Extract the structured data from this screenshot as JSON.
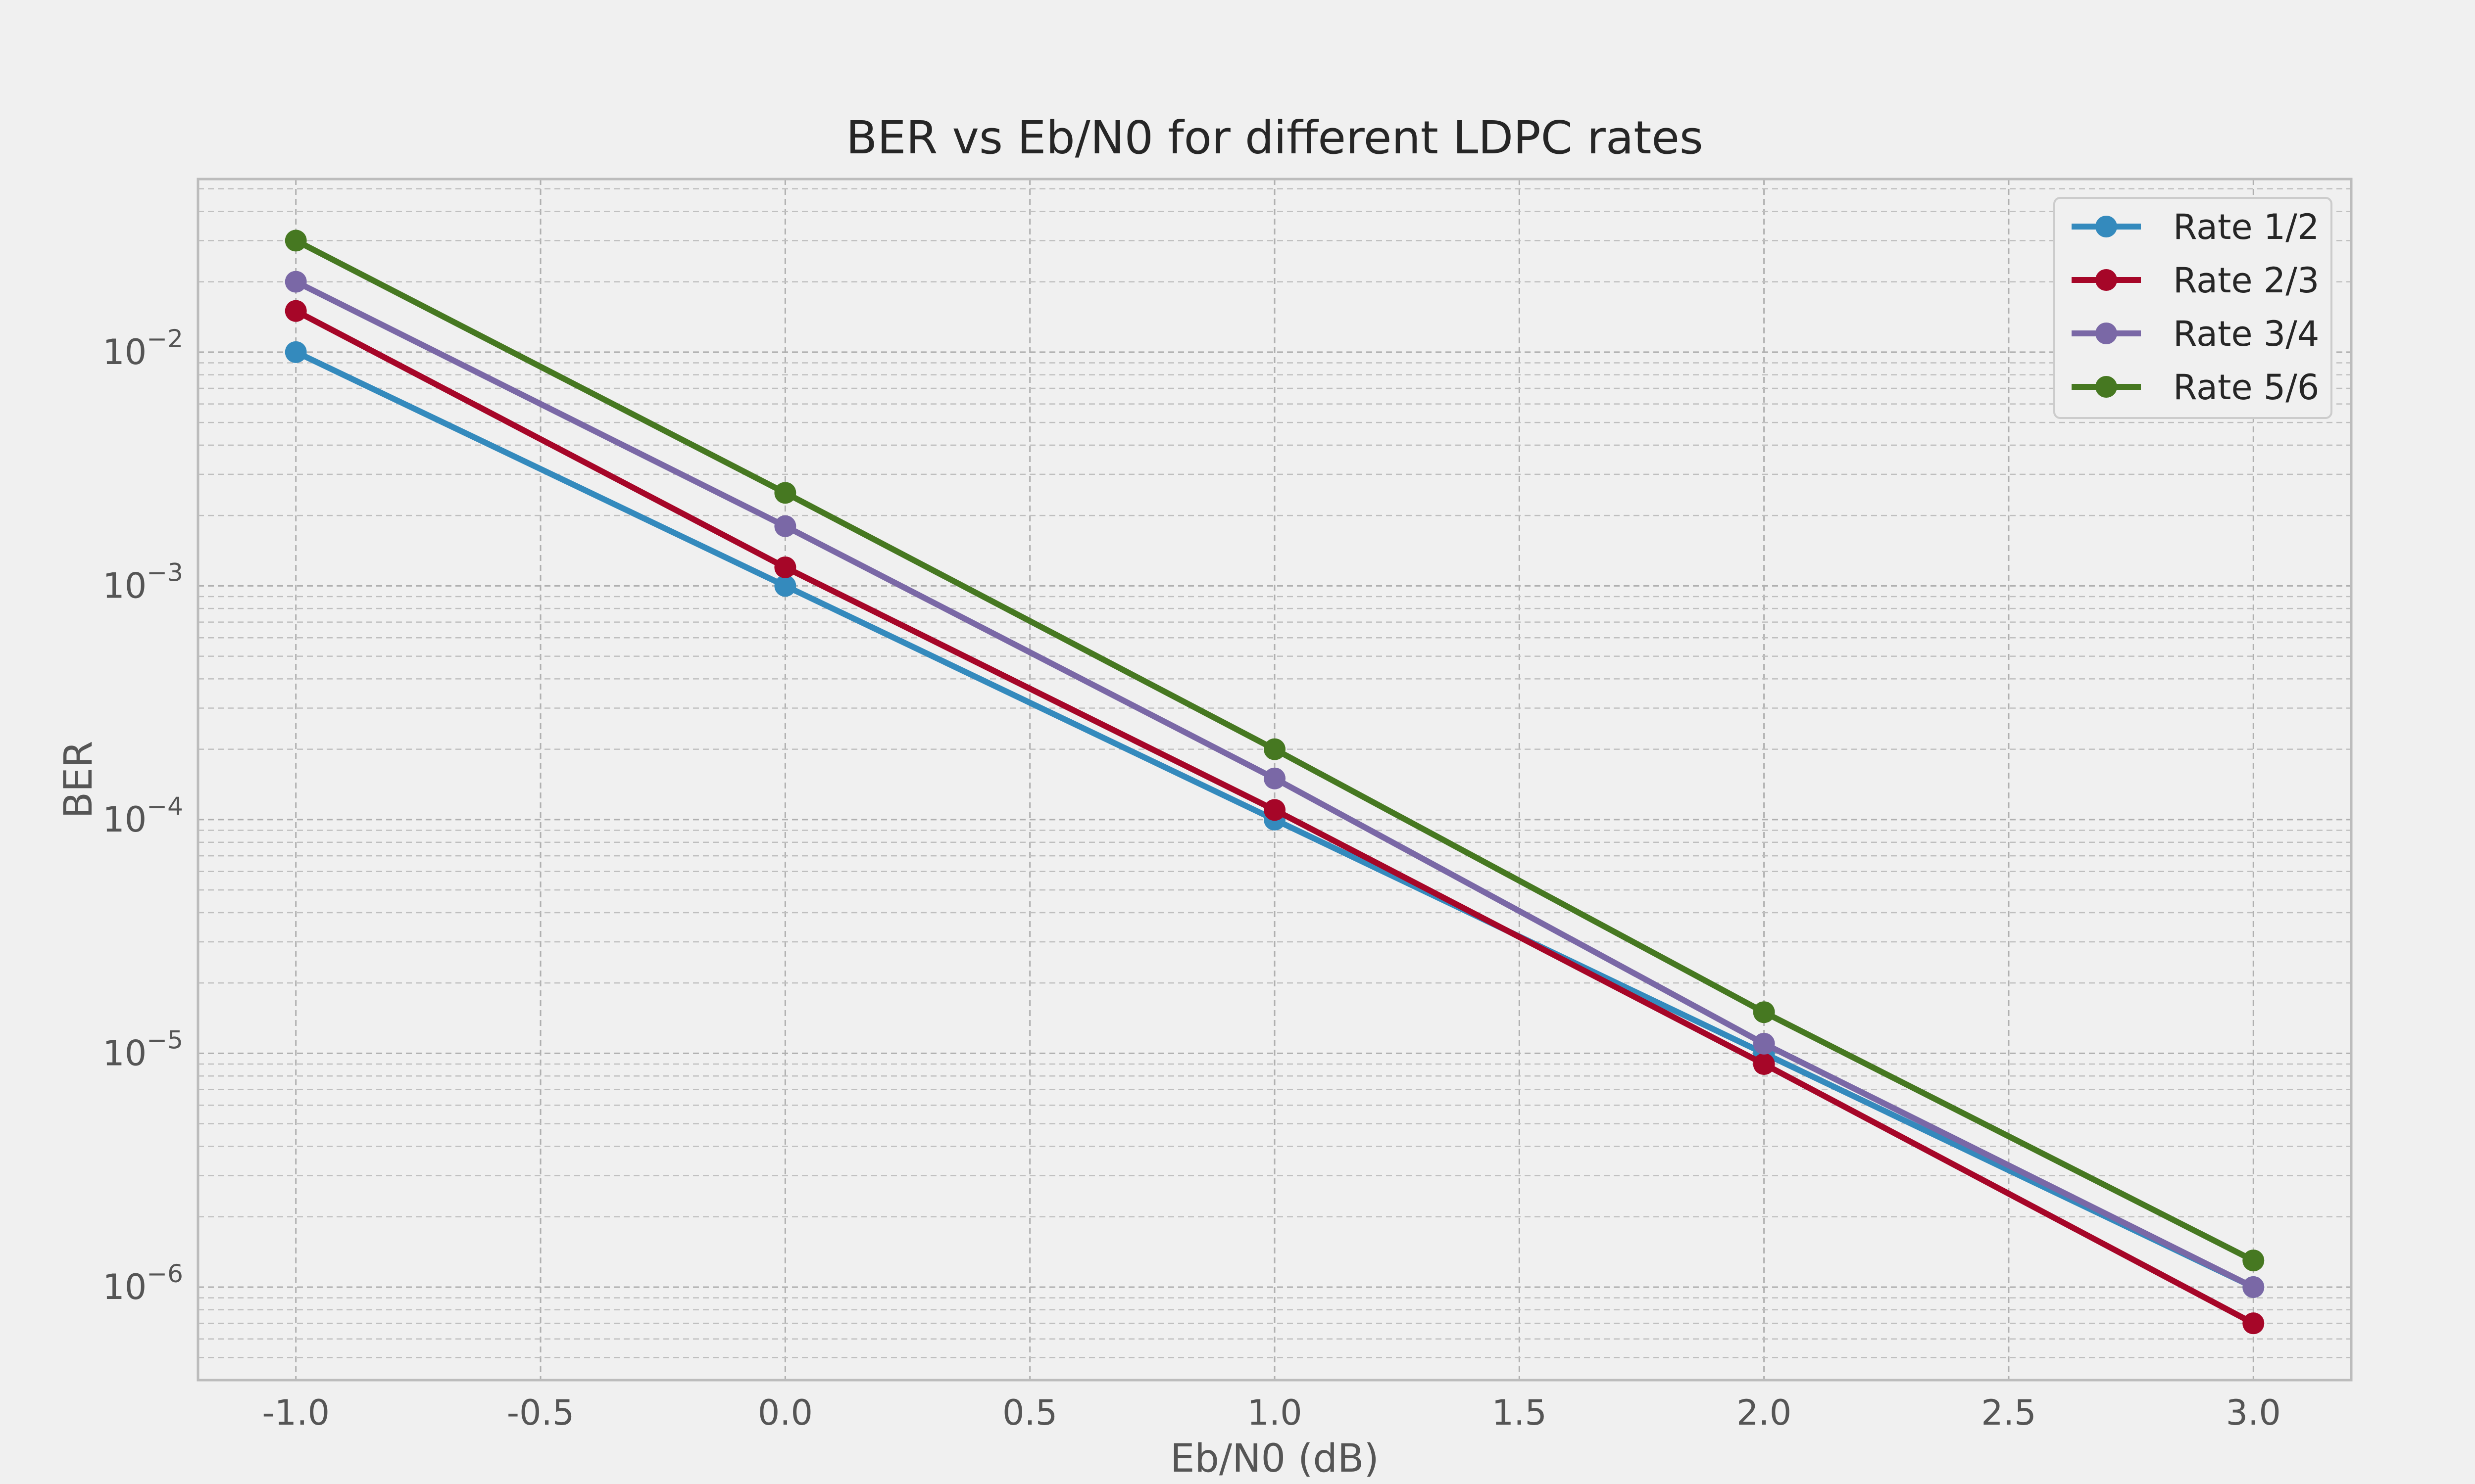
{
  "chart_data": {
    "type": "line",
    "title": "BER vs Eb/N0 for different LDPC rates",
    "xlabel": "Eb/N0 (dB)",
    "ylabel": "BER",
    "yscale": "log",
    "xlim": [
      -1.2,
      3.2
    ],
    "ylim": [
      4e-07,
      0.055
    ],
    "grid": true,
    "legend_position": "top-right",
    "x_ticks": [
      -1.0,
      -0.5,
      0.0,
      0.5,
      1.0,
      1.5,
      2.0,
      2.5,
      3.0
    ],
    "x_tick_labels": [
      "-1.0",
      "-0.5",
      "0.0",
      "0.5",
      "1.0",
      "1.5",
      "2.0",
      "2.5",
      "3.0"
    ],
    "y_ticks": [
      {
        "value": 0.01,
        "base": "10",
        "exponent": "−2"
      },
      {
        "value": 0.001,
        "base": "10",
        "exponent": "−3"
      },
      {
        "value": 0.0001,
        "base": "10",
        "exponent": "−4"
      },
      {
        "value": 1e-05,
        "base": "10",
        "exponent": "−5"
      },
      {
        "value": 1e-06,
        "base": "10",
        "exponent": "−6"
      }
    ],
    "x": [
      -1.0,
      0.0,
      1.0,
      2.0,
      3.0
    ],
    "series": [
      {
        "name": "Rate 1/2",
        "color": "#348abd",
        "values": [
          0.01,
          0.001,
          0.0001,
          1e-05,
          1e-06
        ]
      },
      {
        "name": "Rate 2/3",
        "color": "#a60628",
        "values": [
          0.015,
          0.0012,
          0.00011,
          9e-06,
          7e-07
        ]
      },
      {
        "name": "Rate 3/4",
        "color": "#7a68a6",
        "values": [
          0.02,
          0.0018,
          0.00015,
          1.1e-05,
          1e-06
        ]
      },
      {
        "name": "Rate 5/6",
        "color": "#467821",
        "values": [
          0.03,
          0.0025,
          0.0002,
          1.5e-05,
          1.3e-06
        ]
      }
    ]
  }
}
